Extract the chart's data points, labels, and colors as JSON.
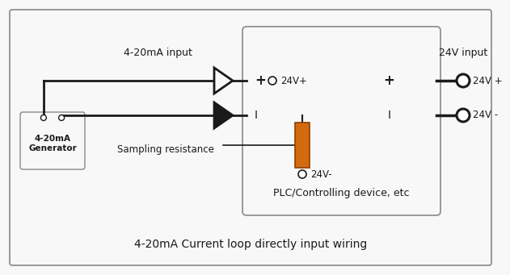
{
  "fig_bg": "#f8f8f8",
  "title": "4-20mA Current loop directly input wiring",
  "title_fontsize": 10,
  "label_4_20mA_input": "4-20mA input",
  "label_24V_input": "24V input",
  "label_24Vplus": "+ °24V+",
  "label_I_left": "I",
  "label_24Vminus": "24V-",
  "label_plus_right": "+",
  "label_I_right": "I",
  "label_24Vplus_right": "24V +",
  "label_24Vminus_right": "24V -",
  "label_sampling": "Sampling resistance",
  "label_plc": "PLC/Controlling device, etc",
  "label_generator": "4-20mA\nGenerator",
  "resistor_color": "#D46A10",
  "line_color": "#1a1a1a",
  "text_color": "#1a1a1a",
  "box_edge_color": "#888888"
}
